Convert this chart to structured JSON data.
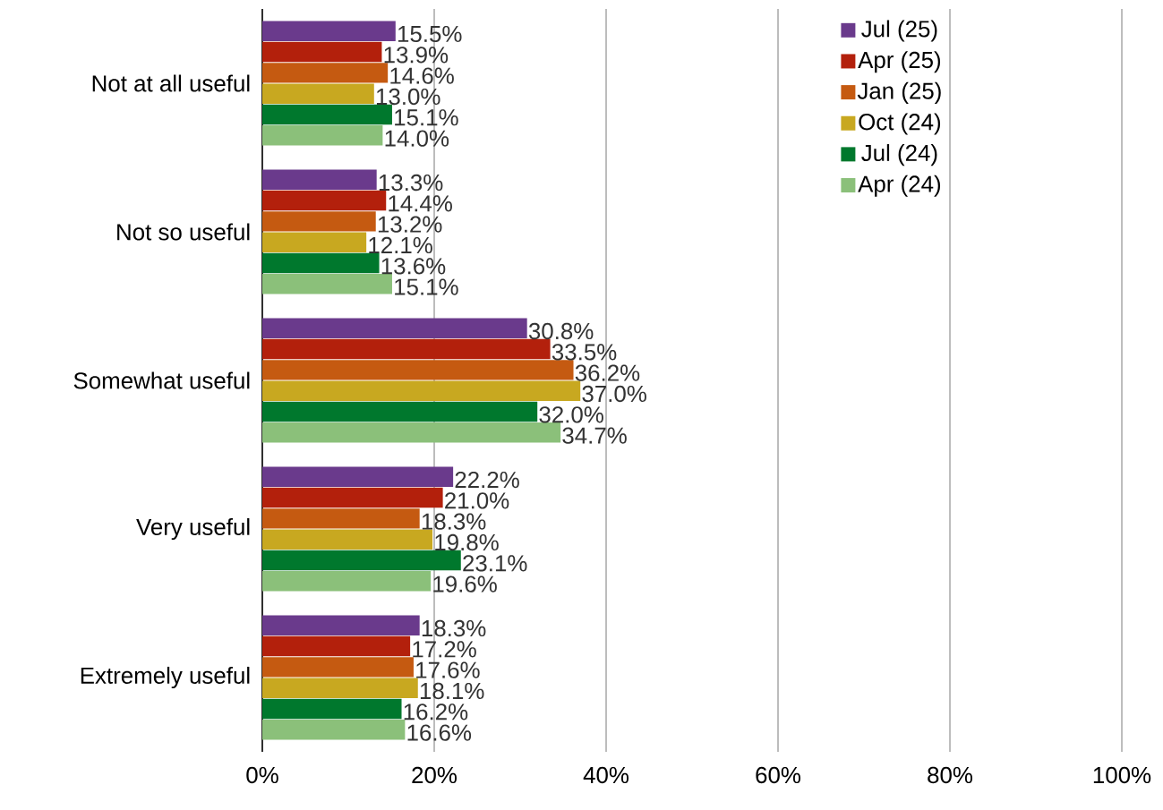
{
  "chart_data": {
    "type": "bar",
    "orientation": "horizontal",
    "categories": [
      "Not at all useful",
      "Not so useful",
      "Somewhat useful",
      "Very useful",
      "Extremely useful"
    ],
    "series": [
      {
        "name": "Jul (25)",
        "color": "#6a3a8c",
        "values": [
          15.5,
          13.3,
          30.8,
          22.2,
          18.3
        ],
        "value_labels": [
          "15.5%",
          "13.3%",
          "30.8%",
          "22.2%",
          "18.3%"
        ]
      },
      {
        "name": "Apr (25)",
        "color": "#b3200c",
        "values": [
          13.9,
          14.4,
          33.5,
          21.0,
          17.2
        ],
        "value_labels": [
          "13.9%",
          "14.4%",
          "33.5%",
          "21.0%",
          "17.2%"
        ]
      },
      {
        "name": "Jan (25)",
        "color": "#c55a11",
        "values": [
          14.6,
          13.2,
          36.2,
          18.3,
          17.6
        ],
        "value_labels": [
          "14.6%",
          "13.2%",
          "36.2%",
          "18.3%",
          "17.6%"
        ]
      },
      {
        "name": "Oct (24)",
        "color": "#c8a820",
        "values": [
          13.0,
          12.1,
          37.0,
          19.8,
          18.1
        ],
        "value_labels": [
          "13.0%",
          "12.1%",
          "37.0%",
          "19.8%",
          "18.1%"
        ]
      },
      {
        "name": "Jul (24)",
        "color": "#00782d",
        "values": [
          15.1,
          13.6,
          32.0,
          23.1,
          16.2
        ],
        "value_labels": [
          "15.1%",
          "13.6%",
          "32.0%",
          "23.1%",
          "16.2%"
        ]
      },
      {
        "name": "Apr (24)",
        "color": "#8bc07a",
        "values": [
          14.0,
          15.1,
          34.7,
          19.6,
          16.6
        ],
        "value_labels": [
          "14.0%",
          "15.1%",
          "34.7%",
          "19.6%",
          "16.6%"
        ]
      }
    ],
    "xlim": [
      0,
      100
    ],
    "xticks": [
      {
        "value": 0,
        "label": "0%"
      },
      {
        "value": 20,
        "label": "20%"
      },
      {
        "value": 40,
        "label": "40%"
      },
      {
        "value": 60,
        "label": "60%"
      },
      {
        "value": 80,
        "label": "80%"
      },
      {
        "value": 100,
        "label": "100%"
      }
    ],
    "grid": "x",
    "legend": "top right"
  }
}
